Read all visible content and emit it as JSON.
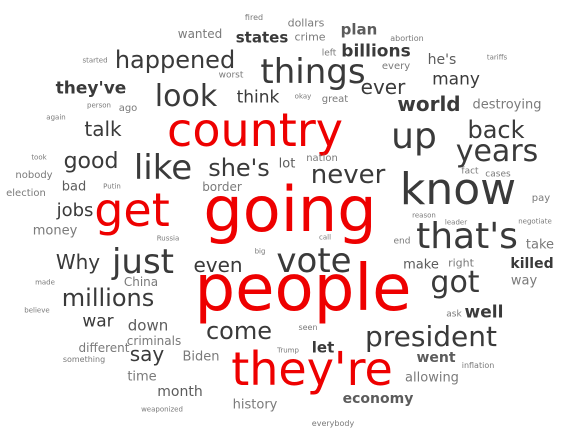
{
  "colors": {
    "highlight": "#ee0000",
    "dark": "#3a3a3a",
    "mid": "#5c5c5c",
    "light": "#7a7a7a"
  },
  "words": [
    {
      "text": "people",
      "color": "highlight"
    },
    {
      "text": "going",
      "color": "highlight"
    },
    {
      "text": "country",
      "color": "highlight"
    },
    {
      "text": "they're",
      "color": "highlight"
    },
    {
      "text": "get",
      "color": "highlight"
    },
    {
      "text": "know",
      "color": "dark"
    },
    {
      "text": "that's",
      "color": "dark"
    },
    {
      "text": "things",
      "color": "dark"
    },
    {
      "text": "up",
      "color": "dark"
    },
    {
      "text": "like",
      "color": "dark"
    },
    {
      "text": "just",
      "color": "dark"
    },
    {
      "text": "vote",
      "color": "dark"
    },
    {
      "text": "got",
      "color": "dark"
    },
    {
      "text": "years",
      "color": "dark"
    },
    {
      "text": "president",
      "color": "dark"
    },
    {
      "text": "look",
      "color": "dark"
    },
    {
      "text": "happened",
      "color": "dark"
    },
    {
      "text": "never",
      "color": "dark"
    },
    {
      "text": "she's",
      "color": "dark"
    },
    {
      "text": "come",
      "color": "dark"
    },
    {
      "text": "millions",
      "color": "dark"
    },
    {
      "text": "back",
      "color": "dark"
    },
    {
      "text": "good",
      "color": "dark"
    },
    {
      "text": "world",
      "color": "dark"
    },
    {
      "text": "even",
      "color": "dark"
    },
    {
      "text": "Why",
      "color": "dark"
    },
    {
      "text": "ever",
      "color": "dark"
    },
    {
      "text": "talk",
      "color": "dark"
    },
    {
      "text": "jobs",
      "color": "dark"
    },
    {
      "text": "say",
      "color": "dark"
    },
    {
      "text": "they've",
      "color": "dark"
    },
    {
      "text": "billions",
      "color": "dark"
    },
    {
      "text": "states",
      "color": "dark"
    },
    {
      "text": "war",
      "color": "dark"
    },
    {
      "text": "think",
      "color": "dark"
    },
    {
      "text": "well",
      "color": "dark"
    },
    {
      "text": "many",
      "color": "dark"
    },
    {
      "text": "killed",
      "color": "dark"
    },
    {
      "text": "down",
      "color": "mid"
    },
    {
      "text": "plan",
      "color": "mid"
    },
    {
      "text": "let",
      "color": "dark"
    },
    {
      "text": "month",
      "color": "mid"
    },
    {
      "text": "went",
      "color": "mid"
    },
    {
      "text": "economy",
      "color": "mid"
    },
    {
      "text": "he's",
      "color": "mid"
    },
    {
      "text": "make",
      "color": "mid"
    },
    {
      "text": "lot",
      "color": "mid"
    },
    {
      "text": "bad",
      "color": "mid"
    },
    {
      "text": "money",
      "color": "light"
    },
    {
      "text": "take",
      "color": "light"
    },
    {
      "text": "way",
      "color": "light"
    },
    {
      "text": "allowing",
      "color": "light"
    },
    {
      "text": "Biden",
      "color": "light"
    },
    {
      "text": "time",
      "color": "light"
    },
    {
      "text": "history",
      "color": "light"
    },
    {
      "text": "destroying",
      "color": "light"
    },
    {
      "text": "different",
      "color": "light"
    },
    {
      "text": "criminals",
      "color": "light"
    },
    {
      "text": "border",
      "color": "light"
    },
    {
      "text": "China",
      "color": "light"
    },
    {
      "text": "wanted",
      "color": "light"
    },
    {
      "text": "right",
      "color": "light"
    },
    {
      "text": "dollars",
      "color": "light"
    },
    {
      "text": "crime",
      "color": "light"
    },
    {
      "text": "every",
      "color": "light"
    },
    {
      "text": "great",
      "color": "light"
    },
    {
      "text": "nation",
      "color": "light"
    },
    {
      "text": "ago",
      "color": "light"
    },
    {
      "text": "nobody",
      "color": "light"
    },
    {
      "text": "election",
      "color": "light"
    },
    {
      "text": "ask",
      "color": "light"
    },
    {
      "text": "left",
      "color": "light"
    },
    {
      "text": "worst",
      "color": "light"
    },
    {
      "text": "fact",
      "color": "light"
    },
    {
      "text": "cases",
      "color": "light"
    },
    {
      "text": "pay",
      "color": "light"
    },
    {
      "text": "end",
      "color": "light"
    },
    {
      "text": "fired",
      "color": "light"
    },
    {
      "text": "abortion",
      "color": "light"
    },
    {
      "text": "started",
      "color": "light"
    },
    {
      "text": "person",
      "color": "light"
    },
    {
      "text": "tariffs",
      "color": "light"
    },
    {
      "text": "again",
      "color": "light"
    },
    {
      "text": "okay",
      "color": "light"
    },
    {
      "text": "took",
      "color": "light"
    },
    {
      "text": "Putin",
      "color": "light"
    },
    {
      "text": "reason",
      "color": "light"
    },
    {
      "text": "leader",
      "color": "light"
    },
    {
      "text": "negotiate",
      "color": "light"
    },
    {
      "text": "call",
      "color": "light"
    },
    {
      "text": "Russia",
      "color": "light"
    },
    {
      "text": "big",
      "color": "light"
    },
    {
      "text": "made",
      "color": "light"
    },
    {
      "text": "believe",
      "color": "light"
    },
    {
      "text": "seen",
      "color": "light"
    },
    {
      "text": "something",
      "color": "light"
    },
    {
      "text": "Trump",
      "color": "light"
    },
    {
      "text": "inflation",
      "color": "light"
    },
    {
      "text": "weaponized",
      "color": "light"
    },
    {
      "text": "everybody",
      "color": "light"
    }
  ]
}
